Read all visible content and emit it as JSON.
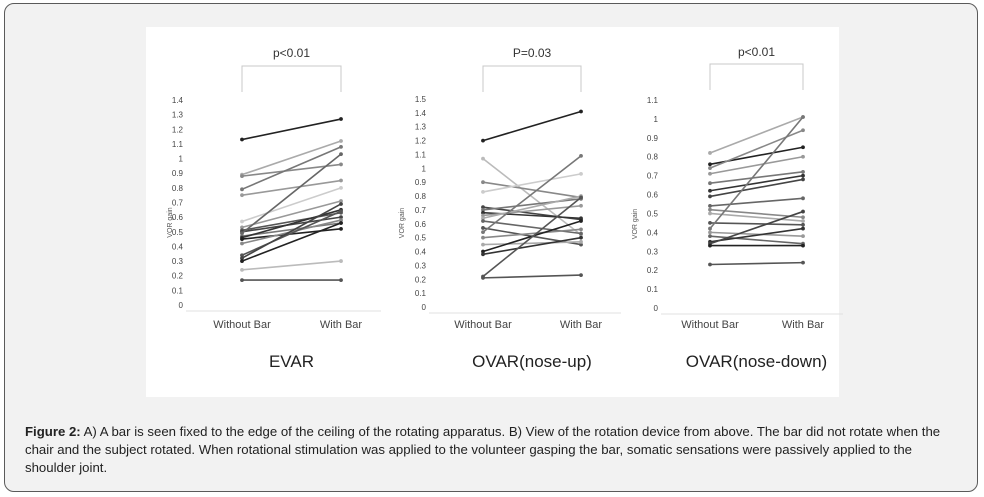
{
  "figure": {
    "caption_label": "Figure 2:",
    "caption_text": " A) A bar is seen fixed to the edge of the ceiling of the rotating apparatus. B) View of the rotation device from above. The bar did not rotate when the chair and the subject rotated. When rotational stimulation was applied to the volunteer gasping the bar, somatic sensations were passively applied to the shoulder joint."
  },
  "chart_data": [
    {
      "type": "line",
      "title": "EVAR",
      "ylabel": "VOR gain",
      "significance": "p<0.01",
      "categories": [
        "Without Bar",
        "With Bar"
      ],
      "yticks": [
        "0",
        "0.1",
        "0.2",
        "0.3",
        "0.4",
        "0.5",
        "0.6",
        "0.7",
        "0.8",
        "0.9",
        "1",
        "1.1",
        "1.2",
        "1.3",
        "1.4"
      ],
      "ylim": [
        0,
        1.4
      ],
      "series": [
        {
          "values": [
            1.13,
            1.27
          ],
          "color": "#222222"
        },
        {
          "values": [
            0.89,
            1.12
          ],
          "color": "#aaaaaa"
        },
        {
          "values": [
            0.88,
            0.96
          ],
          "color": "#888888"
        },
        {
          "values": [
            0.79,
            1.08
          ],
          "color": "#777777"
        },
        {
          "values": [
            0.75,
            0.85
          ],
          "color": "#999999"
        },
        {
          "values": [
            0.57,
            0.8
          ],
          "color": "#cccccc"
        },
        {
          "values": [
            0.53,
            0.71
          ],
          "color": "#999999"
        },
        {
          "values": [
            0.51,
            0.63
          ],
          "color": "#555555"
        },
        {
          "values": [
            0.5,
            0.6
          ],
          "color": "#444444"
        },
        {
          "values": [
            0.49,
            1.03
          ],
          "color": "#666666"
        },
        {
          "values": [
            0.47,
            0.56
          ],
          "color": "#777777"
        },
        {
          "values": [
            0.46,
            0.65
          ],
          "color": "#333333"
        },
        {
          "values": [
            0.45,
            0.52
          ],
          "color": "#222222"
        },
        {
          "values": [
            0.42,
            0.58
          ],
          "color": "#888888"
        },
        {
          "values": [
            0.34,
            0.64
          ],
          "color": "#555555"
        },
        {
          "values": [
            0.32,
            0.69
          ],
          "color": "#444444"
        },
        {
          "values": [
            0.3,
            0.56
          ],
          "color": "#222222"
        },
        {
          "values": [
            0.24,
            0.3
          ],
          "color": "#bbbbbb"
        },
        {
          "values": [
            0.17,
            0.17
          ],
          "color": "#555555"
        }
      ]
    },
    {
      "type": "line",
      "title": "OVAR(nose-up)",
      "ylabel": "VOR gain",
      "significance": "P=0.03",
      "categories": [
        "Without Bar",
        "With Bar"
      ],
      "yticks": [
        "0",
        "0.1",
        "0.2",
        "0.3",
        "0.4",
        "0.5",
        "0.6",
        "0.7",
        "0.8",
        "0.9",
        "1",
        "1.1",
        "1.2",
        "1.3",
        "1.4",
        "1.5"
      ],
      "ylim": [
        0,
        1.5
      ],
      "series": [
        {
          "values": [
            1.2,
            1.41
          ],
          "color": "#222222"
        },
        {
          "values": [
            1.07,
            0.52
          ],
          "color": "#bbbbbb"
        },
        {
          "values": [
            0.9,
            0.79
          ],
          "color": "#888888"
        },
        {
          "values": [
            0.83,
            0.96
          ],
          "color": "#cccccc"
        },
        {
          "values": [
            0.72,
            0.63
          ],
          "color": "#444444"
        },
        {
          "values": [
            0.7,
            0.78
          ],
          "color": "#777777"
        },
        {
          "values": [
            0.68,
            0.64
          ],
          "color": "#333333"
        },
        {
          "values": [
            0.66,
            0.73
          ],
          "color": "#999999"
        },
        {
          "values": [
            0.64,
            0.8
          ],
          "color": "#aaaaaa"
        },
        {
          "values": [
            0.62,
            0.53
          ],
          "color": "#666666"
        },
        {
          "values": [
            0.57,
            0.45
          ],
          "color": "#555555"
        },
        {
          "values": [
            0.54,
            1.09
          ],
          "color": "#777777"
        },
        {
          "values": [
            0.5,
            0.56
          ],
          "color": "#888888"
        },
        {
          "values": [
            0.45,
            0.47
          ],
          "color": "#aaaaaa"
        },
        {
          "values": [
            0.4,
            0.62
          ],
          "color": "#222222"
        },
        {
          "values": [
            0.38,
            0.5
          ],
          "color": "#333333"
        },
        {
          "values": [
            0.22,
            0.79
          ],
          "color": "#555555"
        },
        {
          "values": [
            0.21,
            0.23
          ],
          "color": "#555555"
        }
      ]
    },
    {
      "type": "line",
      "title": "OVAR(nose-down)",
      "ylabel": "VOR gain",
      "significance": "p<0.01",
      "categories": [
        "Without Bar",
        "With Bar"
      ],
      "yticks": [
        "0",
        "0.1",
        "0.2",
        "0.3",
        "0.4",
        "0.5",
        "0.6",
        "0.7",
        "0.8",
        "0.9",
        "1",
        "1.1"
      ],
      "ylim": [
        0,
        1.1
      ],
      "series": [
        {
          "values": [
            0.82,
            1.01
          ],
          "color": "#aaaaaa"
        },
        {
          "values": [
            0.76,
            0.85
          ],
          "color": "#222222"
        },
        {
          "values": [
            0.74,
            0.94
          ],
          "color": "#888888"
        },
        {
          "values": [
            0.71,
            0.8
          ],
          "color": "#999999"
        },
        {
          "values": [
            0.66,
            0.72
          ],
          "color": "#777777"
        },
        {
          "values": [
            0.62,
            0.7
          ],
          "color": "#333333"
        },
        {
          "values": [
            0.59,
            0.68
          ],
          "color": "#444444"
        },
        {
          "values": [
            0.54,
            0.58
          ],
          "color": "#666666"
        },
        {
          "values": [
            0.52,
            0.48
          ],
          "color": "#888888"
        },
        {
          "values": [
            0.5,
            0.46
          ],
          "color": "#aaaaaa"
        },
        {
          "values": [
            0.45,
            0.44
          ],
          "color": "#555555"
        },
        {
          "values": [
            0.42,
            1.01
          ],
          "color": "#777777"
        },
        {
          "values": [
            0.4,
            0.38
          ],
          "color": "#999999"
        },
        {
          "values": [
            0.38,
            0.34
          ],
          "color": "#666666"
        },
        {
          "values": [
            0.35,
            0.42
          ],
          "color": "#333333"
        },
        {
          "values": [
            0.34,
            0.51
          ],
          "color": "#444444"
        },
        {
          "values": [
            0.33,
            0.33
          ],
          "color": "#222222"
        },
        {
          "values": [
            0.23,
            0.24
          ],
          "color": "#555555"
        }
      ]
    }
  ]
}
